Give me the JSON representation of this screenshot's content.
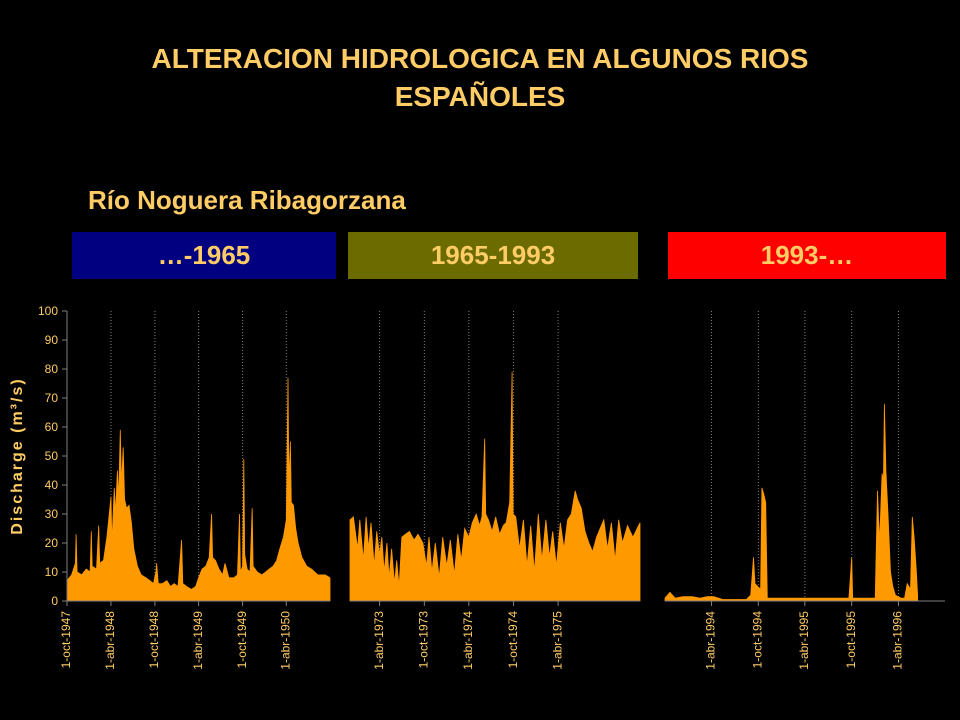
{
  "title": {
    "line1": "ALTERACION HIDROLOGICA EN ALGUNOS RIOS",
    "line2": "ESPAÑOLES"
  },
  "subtitle": "Río Noguera Ribagorzana",
  "periods": [
    {
      "label": "…-1965",
      "bg": "#000080",
      "fg": "#FFCC66"
    },
    {
      "label": "1965-1993",
      "bg": "#6B6B00",
      "fg": "#FFCC66"
    },
    {
      "label": "1993-…",
      "bg": "#FF0000",
      "fg": "#FFCC66"
    }
  ],
  "colors": {
    "series": "#FF9900",
    "grid": "#808080",
    "text": "#FFCC66",
    "background": "#000000"
  },
  "chart_data": [
    {
      "type": "area",
      "ylabel": "Discharge (m³/s)",
      "ylim": [
        0,
        100
      ],
      "yticks": [
        0,
        10,
        20,
        30,
        40,
        50,
        60,
        70,
        80,
        90,
        100
      ],
      "xlim": [
        "1947-10-01",
        "1950-09-30"
      ],
      "xticks": [
        {
          "label": "1-oct-1947",
          "date": "1947-10-01"
        },
        {
          "label": "1-abr-1948",
          "date": "1948-04-01"
        },
        {
          "label": "1-oct-1948",
          "date": "1948-10-01"
        },
        {
          "label": "1-abr-1949",
          "date": "1949-04-01"
        },
        {
          "label": "1-oct-1949",
          "date": "1949-10-01"
        },
        {
          "label": "1-abr-1950",
          "date": "1950-04-01"
        }
      ],
      "series": [
        {
          "points": [
            [
              "1947-10-01",
              7
            ],
            [
              "1947-10-20",
              9
            ],
            [
              "1947-11-05",
              13
            ],
            [
              "1947-11-08",
              23
            ],
            [
              "1947-11-12",
              10
            ],
            [
              "1947-12-01",
              9
            ],
            [
              "1947-12-20",
              11
            ],
            [
              "1948-01-05",
              10
            ],
            [
              "1948-01-10",
              24
            ],
            [
              "1948-01-14",
              12
            ],
            [
              "1948-02-01",
              11
            ],
            [
              "1948-02-10",
              26
            ],
            [
              "1948-02-14",
              13
            ],
            [
              "1948-03-01",
              14
            ],
            [
              "1948-03-15",
              22
            ],
            [
              "1948-04-01",
              36
            ],
            [
              "1948-04-05",
              20
            ],
            [
              "1948-04-15",
              39
            ],
            [
              "1948-04-20",
              30
            ],
            [
              "1948-04-28",
              45
            ],
            [
              "1948-05-03",
              35
            ],
            [
              "1948-05-10",
              59
            ],
            [
              "1948-05-15",
              40
            ],
            [
              "1948-05-22",
              53
            ],
            [
              "1948-05-28",
              35
            ],
            [
              "1948-06-05",
              32
            ],
            [
              "1948-06-15",
              33
            ],
            [
              "1948-06-25",
              27
            ],
            [
              "1948-07-05",
              18
            ],
            [
              "1948-07-20",
              12
            ],
            [
              "1948-08-05",
              9
            ],
            [
              "1948-08-25",
              8
            ],
            [
              "1948-09-10",
              7
            ],
            [
              "1948-09-25",
              6
            ],
            [
              "1948-10-05",
              10
            ],
            [
              "1948-10-08",
              13
            ],
            [
              "1948-10-15",
              6
            ],
            [
              "1948-11-01",
              6
            ],
            [
              "1948-11-20",
              7
            ],
            [
              "1948-12-05",
              5
            ],
            [
              "1948-12-20",
              6
            ],
            [
              "1949-01-05",
              5
            ],
            [
              "1949-01-20",
              21
            ],
            [
              "1949-01-25",
              6
            ],
            [
              "1949-02-10",
              5
            ],
            [
              "1949-03-01",
              4
            ],
            [
              "1949-03-20",
              5
            ],
            [
              "1949-04-01",
              8
            ],
            [
              "1949-04-15",
              11
            ],
            [
              "1949-05-01",
              12
            ],
            [
              "1949-05-15",
              15
            ],
            [
              "1949-05-25",
              30
            ],
            [
              "1949-05-29",
              15
            ],
            [
              "1949-06-10",
              14
            ],
            [
              "1949-06-25",
              11
            ],
            [
              "1949-07-10",
              9
            ],
            [
              "1949-07-20",
              13
            ],
            [
              "1949-08-05",
              8
            ],
            [
              "1949-08-25",
              8
            ],
            [
              "1949-09-10",
              9
            ],
            [
              "1949-09-18",
              30
            ],
            [
              "1949-09-22",
              10
            ],
            [
              "1949-10-01",
              12
            ],
            [
              "1949-10-06",
              49
            ],
            [
              "1949-10-10",
              16
            ],
            [
              "1949-10-20",
              11
            ],
            [
              "1949-11-01",
              10
            ],
            [
              "1949-11-10",
              32
            ],
            [
              "1949-11-14",
              12
            ],
            [
              "1949-12-01",
              10
            ],
            [
              "1949-12-20",
              9
            ],
            [
              "1950-01-05",
              10
            ],
            [
              "1950-01-20",
              11
            ],
            [
              "1950-02-05",
              12
            ],
            [
              "1950-02-20",
              14
            ],
            [
              "1950-03-05",
              18
            ],
            [
              "1950-03-20",
              22
            ],
            [
              "1950-04-01",
              28
            ],
            [
              "1950-04-08",
              77
            ],
            [
              "1950-04-12",
              40
            ],
            [
              "1950-04-18",
              55
            ],
            [
              "1950-04-22",
              34
            ],
            [
              "1950-05-01",
              33
            ],
            [
              "1950-05-10",
              25
            ],
            [
              "1950-05-20",
              20
            ],
            [
              "1950-06-05",
              15
            ],
            [
              "1950-06-25",
              12
            ],
            [
              "1950-07-15",
              11
            ],
            [
              "1950-08-10",
              9
            ],
            [
              "1950-09-10",
              9
            ],
            [
              "1950-09-30",
              8
            ]
          ]
        }
      ]
    },
    {
      "type": "area",
      "ylim": [
        0,
        100
      ],
      "xlim": [
        "1972-12-01",
        "1976-03-01"
      ],
      "xticks": [
        {
          "label": "1-abr-1973",
          "date": "1973-04-01"
        },
        {
          "label": "1-oct-1973",
          "date": "1973-10-01"
        },
        {
          "label": "1-abr-1974",
          "date": "1974-04-01"
        },
        {
          "label": "1-oct-1974",
          "date": "1974-10-01"
        },
        {
          "label": "1-abr-1975",
          "date": "1975-04-01"
        }
      ],
      "series": [
        {
          "points": [
            [
              "1972-12-01",
              28
            ],
            [
              "1972-12-15",
              29
            ],
            [
              "1973-01-01",
              18
            ],
            [
              "1973-01-10",
              28
            ],
            [
              "1973-01-25",
              14
            ],
            [
              "1973-02-05",
              29
            ],
            [
              "1973-02-15",
              18
            ],
            [
              "1973-02-25",
              27
            ],
            [
              "1973-03-10",
              12
            ],
            [
              "1973-03-20",
              24
            ],
            [
              "1973-04-01",
              16
            ],
            [
              "1973-04-10",
              22
            ],
            [
              "1973-04-20",
              10
            ],
            [
              "1973-05-01",
              20
            ],
            [
              "1973-05-10",
              8
            ],
            [
              "1973-05-20",
              18
            ],
            [
              "1973-06-01",
              6
            ],
            [
              "1973-06-10",
              14
            ],
            [
              "1973-06-20",
              5
            ],
            [
              "1973-07-01",
              22
            ],
            [
              "1973-07-15",
              23
            ],
            [
              "1973-08-01",
              24
            ],
            [
              "1973-08-20",
              21
            ],
            [
              "1973-09-05",
              23
            ],
            [
              "1973-09-25",
              20
            ],
            [
              "1973-10-10",
              12
            ],
            [
              "1973-10-20",
              22
            ],
            [
              "1973-11-01",
              10
            ],
            [
              "1973-11-15",
              20
            ],
            [
              "1973-12-01",
              8
            ],
            [
              "1973-12-15",
              22
            ],
            [
              "1974-01-01",
              12
            ],
            [
              "1974-01-15",
              21
            ],
            [
              "1974-02-01",
              9
            ],
            [
              "1974-02-15",
              23
            ],
            [
              "1974-03-01",
              14
            ],
            [
              "1974-03-15",
              25
            ],
            [
              "1974-04-01",
              22
            ],
            [
              "1974-04-15",
              27
            ],
            [
              "1974-05-01",
              30
            ],
            [
              "1974-05-15",
              26
            ],
            [
              "1974-05-25",
              29
            ],
            [
              "1974-06-05",
              56
            ],
            [
              "1974-06-09",
              30
            ],
            [
              "1974-06-20",
              28
            ],
            [
              "1974-07-05",
              24
            ],
            [
              "1974-07-20",
              29
            ],
            [
              "1974-08-05",
              23
            ],
            [
              "1974-08-20",
              26
            ],
            [
              "1974-09-01",
              27
            ],
            [
              "1974-09-15",
              34
            ],
            [
              "1974-09-25",
              79
            ],
            [
              "1974-09-29",
              30
            ],
            [
              "1974-10-10",
              29
            ],
            [
              "1974-10-25",
              18
            ],
            [
              "1974-11-10",
              28
            ],
            [
              "1974-11-25",
              12
            ],
            [
              "1974-12-10",
              26
            ],
            [
              "1974-12-25",
              10
            ],
            [
              "1975-01-10",
              30
            ],
            [
              "1975-01-25",
              14
            ],
            [
              "1975-02-10",
              28
            ],
            [
              "1975-02-25",
              15
            ],
            [
              "1975-03-10",
              24
            ],
            [
              "1975-03-25",
              12
            ],
            [
              "1975-04-10",
              27
            ],
            [
              "1975-04-25",
              18
            ],
            [
              "1975-05-10",
              28
            ],
            [
              "1975-05-25",
              30
            ],
            [
              "1975-06-10",
              38
            ],
            [
              "1975-06-20",
              35
            ],
            [
              "1975-07-05",
              32
            ],
            [
              "1975-07-20",
              24
            ],
            [
              "1975-08-05",
              20
            ],
            [
              "1975-08-20",
              17
            ],
            [
              "1975-09-05",
              22
            ],
            [
              "1975-09-20",
              25
            ],
            [
              "1975-10-05",
              28
            ],
            [
              "1975-10-20",
              18
            ],
            [
              "1975-11-05",
              27
            ],
            [
              "1975-11-20",
              14
            ],
            [
              "1975-12-05",
              28
            ],
            [
              "1975-12-20",
              20
            ],
            [
              "1976-01-10",
              26
            ],
            [
              "1976-02-01",
              22
            ],
            [
              "1976-03-01",
              27
            ]
          ]
        }
      ]
    },
    {
      "type": "area",
      "ylim": [
        0,
        100
      ],
      "xlim": [
        "1993-10-01",
        "1996-09-30"
      ],
      "xticks": [
        {
          "label": "1-abr-1994",
          "date": "1994-04-01"
        },
        {
          "label": "1-oct-1994",
          "date": "1994-10-01"
        },
        {
          "label": "1-abr-1995",
          "date": "1995-04-01"
        },
        {
          "label": "1-oct-1995",
          "date": "1995-10-01"
        },
        {
          "label": "1-abr-1996",
          "date": "1996-04-01"
        }
      ],
      "series": [
        {
          "points": [
            [
              "1993-10-01",
              1
            ],
            [
              "1993-10-20",
              3
            ],
            [
              "1993-11-10",
              1
            ],
            [
              "1993-12-10",
              1.5
            ],
            [
              "1994-01-15",
              1.5
            ],
            [
              "1994-02-15",
              1
            ],
            [
              "1994-03-15",
              1.5
            ],
            [
              "1994-04-10",
              1.5
            ],
            [
              "1994-05-15",
              0.5
            ],
            [
              "1994-06-15",
              0.5
            ],
            [
              "1994-07-15",
              0.5
            ],
            [
              "1994-08-15",
              0.5
            ],
            [
              "1994-09-01",
              2
            ],
            [
              "1994-09-12",
              15
            ],
            [
              "1994-09-18",
              6
            ],
            [
              "1994-10-10",
              4
            ],
            [
              "1994-10-15",
              39
            ],
            [
              "1994-10-22",
              37
            ],
            [
              "1994-10-30",
              34
            ],
            [
              "1994-11-05",
              1
            ],
            [
              "1994-12-15",
              1
            ],
            [
              "1995-02-15",
              1
            ],
            [
              "1995-04-15",
              1
            ],
            [
              "1995-06-15",
              1
            ],
            [
              "1995-08-15",
              1
            ],
            [
              "1995-09-20",
              1
            ],
            [
              "1995-10-01",
              15
            ],
            [
              "1995-10-05",
              1
            ],
            [
              "1995-11-15",
              1
            ],
            [
              "1995-12-15",
              1
            ],
            [
              "1996-01-01",
              1
            ],
            [
              "1996-01-10",
              38
            ],
            [
              "1996-01-18",
              20
            ],
            [
              "1996-01-28",
              44
            ],
            [
              "1996-02-02",
              41
            ],
            [
              "1996-02-06",
              68
            ],
            [
              "1996-02-12",
              45
            ],
            [
              "1996-02-20",
              30
            ],
            [
              "1996-03-01",
              10
            ],
            [
              "1996-03-10",
              5
            ],
            [
              "1996-03-20",
              2
            ],
            [
              "1996-04-10",
              1
            ],
            [
              "1996-04-25",
              1
            ],
            [
              "1996-05-05",
              6
            ],
            [
              "1996-05-12",
              5
            ],
            [
              "1996-05-18",
              4
            ],
            [
              "1996-05-25",
              29
            ],
            [
              "1996-06-01",
              22
            ],
            [
              "1996-06-10",
              10
            ],
            [
              "1996-06-15",
              2
            ]
          ]
        }
      ]
    }
  ]
}
